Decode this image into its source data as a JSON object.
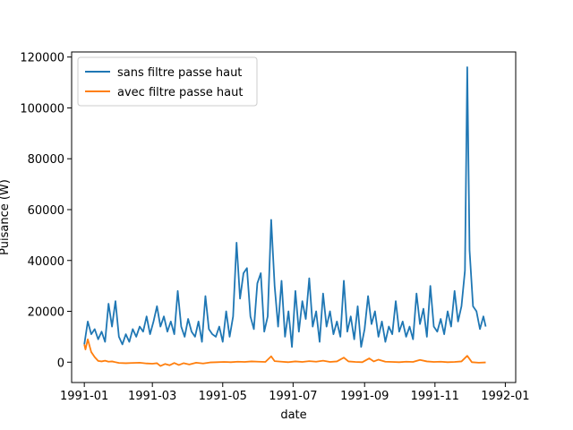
{
  "chart_data": {
    "type": "line",
    "title": "",
    "xlabel": "date",
    "ylabel": "Puisance (W)",
    "xlim": [
      "1990-12-21",
      "1992-01-10"
    ],
    "ylim": [
      -8000,
      122000
    ],
    "grid": false,
    "legend_position": "top-left",
    "x_ticks": [
      "1991-01-01",
      "1991-03-01",
      "1991-05-01",
      "1991-07-01",
      "1991-09-01",
      "1991-11-01",
      "1992-01-01"
    ],
    "x_tick_labels": [
      "1991-01",
      "1991-03",
      "1991-05",
      "1991-07",
      "1991-09",
      "1991-11",
      "1992-01"
    ],
    "y_ticks": [
      0,
      20000,
      40000,
      60000,
      80000,
      100000,
      120000
    ],
    "series": [
      {
        "name": "sans filtre passe haut",
        "color": "#1f77b4",
        "points": [
          [
            "1991-01-01",
            7000
          ],
          [
            "1991-01-04",
            16000
          ],
          [
            "1991-01-07",
            11000
          ],
          [
            "1991-01-10",
            13000
          ],
          [
            "1991-01-13",
            9000
          ],
          [
            "1991-01-16",
            12000
          ],
          [
            "1991-01-19",
            8000
          ],
          [
            "1991-01-22",
            23000
          ],
          [
            "1991-01-25",
            14000
          ],
          [
            "1991-01-28",
            24000
          ],
          [
            "1991-01-31",
            10000
          ],
          [
            "1991-02-03",
            7000
          ],
          [
            "1991-02-06",
            11000
          ],
          [
            "1991-02-09",
            8000
          ],
          [
            "1991-02-12",
            13000
          ],
          [
            "1991-02-15",
            10000
          ],
          [
            "1991-02-18",
            14000
          ],
          [
            "1991-02-21",
            12000
          ],
          [
            "1991-02-24",
            18000
          ],
          [
            "1991-02-27",
            11000
          ],
          [
            "1991-03-02",
            16000
          ],
          [
            "1991-03-05",
            22000
          ],
          [
            "1991-03-08",
            14000
          ],
          [
            "1991-03-11",
            18000
          ],
          [
            "1991-03-14",
            12000
          ],
          [
            "1991-03-17",
            16000
          ],
          [
            "1991-03-20",
            11000
          ],
          [
            "1991-03-23",
            28000
          ],
          [
            "1991-03-26",
            14000
          ],
          [
            "1991-03-29",
            10000
          ],
          [
            "1991-04-01",
            17000
          ],
          [
            "1991-04-04",
            12000
          ],
          [
            "1991-04-07",
            10000
          ],
          [
            "1991-04-10",
            16000
          ],
          [
            "1991-04-13",
            8000
          ],
          [
            "1991-04-16",
            26000
          ],
          [
            "1991-04-19",
            13000
          ],
          [
            "1991-04-22",
            11000
          ],
          [
            "1991-04-25",
            10000
          ],
          [
            "1991-04-28",
            14000
          ],
          [
            "1991-05-01",
            8000
          ],
          [
            "1991-05-04",
            20000
          ],
          [
            "1991-05-07",
            10000
          ],
          [
            "1991-05-10",
            18000
          ],
          [
            "1991-05-13",
            47000
          ],
          [
            "1991-05-16",
            25000
          ],
          [
            "1991-05-19",
            35000
          ],
          [
            "1991-05-22",
            37000
          ],
          [
            "1991-05-25",
            18000
          ],
          [
            "1991-05-28",
            13000
          ],
          [
            "1991-05-31",
            31000
          ],
          [
            "1991-06-03",
            35000
          ],
          [
            "1991-06-06",
            12000
          ],
          [
            "1991-06-09",
            18000
          ],
          [
            "1991-06-12",
            56000
          ],
          [
            "1991-06-15",
            30000
          ],
          [
            "1991-06-18",
            14000
          ],
          [
            "1991-06-21",
            32000
          ],
          [
            "1991-06-24",
            10000
          ],
          [
            "1991-06-27",
            20000
          ],
          [
            "1991-06-30",
            6000
          ],
          [
            "1991-07-03",
            28000
          ],
          [
            "1991-07-06",
            12000
          ],
          [
            "1991-07-09",
            24000
          ],
          [
            "1991-07-12",
            17000
          ],
          [
            "1991-07-15",
            33000
          ],
          [
            "1991-07-18",
            14000
          ],
          [
            "1991-07-21",
            20000
          ],
          [
            "1991-07-24",
            8000
          ],
          [
            "1991-07-27",
            27000
          ],
          [
            "1991-07-30",
            14000
          ],
          [
            "1991-08-02",
            20000
          ],
          [
            "1991-08-05",
            11000
          ],
          [
            "1991-08-08",
            16000
          ],
          [
            "1991-08-11",
            10000
          ],
          [
            "1991-08-14",
            32000
          ],
          [
            "1991-08-17",
            12000
          ],
          [
            "1991-08-20",
            18000
          ],
          [
            "1991-08-23",
            9000
          ],
          [
            "1991-08-26",
            22000
          ],
          [
            "1991-08-29",
            6000
          ],
          [
            "1991-09-01",
            13000
          ],
          [
            "1991-09-04",
            26000
          ],
          [
            "1991-09-07",
            15000
          ],
          [
            "1991-09-10",
            20000
          ],
          [
            "1991-09-13",
            10000
          ],
          [
            "1991-09-16",
            16000
          ],
          [
            "1991-09-19",
            8000
          ],
          [
            "1991-09-22",
            14000
          ],
          [
            "1991-09-25",
            11000
          ],
          [
            "1991-09-28",
            24000
          ],
          [
            "1991-10-01",
            12000
          ],
          [
            "1991-10-04",
            16000
          ],
          [
            "1991-10-07",
            10000
          ],
          [
            "1991-10-10",
            14000
          ],
          [
            "1991-10-13",
            9000
          ],
          [
            "1991-10-16",
            27000
          ],
          [
            "1991-10-19",
            15000
          ],
          [
            "1991-10-22",
            21000
          ],
          [
            "1991-10-25",
            10000
          ],
          [
            "1991-10-28",
            30000
          ],
          [
            "1991-10-31",
            14000
          ],
          [
            "1991-11-03",
            12000
          ],
          [
            "1991-11-06",
            17000
          ],
          [
            "1991-11-09",
            11000
          ],
          [
            "1991-11-12",
            20000
          ],
          [
            "1991-11-15",
            14000
          ],
          [
            "1991-11-18",
            28000
          ],
          [
            "1991-11-21",
            16000
          ],
          [
            "1991-11-24",
            22000
          ],
          [
            "1991-11-27",
            36000
          ],
          [
            "1991-11-29",
            116000
          ],
          [
            "1991-12-01",
            44000
          ],
          [
            "1991-12-04",
            22000
          ],
          [
            "1991-12-07",
            20000
          ],
          [
            "1991-12-10",
            13000
          ],
          [
            "1991-12-13",
            18000
          ],
          [
            "1991-12-15",
            14000
          ]
        ]
      },
      {
        "name": "avec filtre passe haut",
        "color": "#ff7f0e",
        "points": [
          [
            "1991-01-01",
            7000
          ],
          [
            "1991-01-02",
            5000
          ],
          [
            "1991-01-04",
            9000
          ],
          [
            "1991-01-07",
            4000
          ],
          [
            "1991-01-10",
            2000
          ],
          [
            "1991-01-13",
            500
          ],
          [
            "1991-01-16",
            300
          ],
          [
            "1991-01-19",
            600
          ],
          [
            "1991-01-22",
            200
          ],
          [
            "1991-01-25",
            300
          ],
          [
            "1991-01-31",
            -300
          ],
          [
            "1991-02-06",
            -400
          ],
          [
            "1991-02-12",
            -300
          ],
          [
            "1991-02-18",
            -200
          ],
          [
            "1991-02-24",
            -500
          ],
          [
            "1991-03-01",
            -600
          ],
          [
            "1991-03-05",
            -400
          ],
          [
            "1991-03-08",
            -1500
          ],
          [
            "1991-03-12",
            -700
          ],
          [
            "1991-03-16",
            -1200
          ],
          [
            "1991-03-20",
            -300
          ],
          [
            "1991-03-24",
            -1100
          ],
          [
            "1991-03-28",
            -400
          ],
          [
            "1991-04-02",
            -900
          ],
          [
            "1991-04-08",
            -200
          ],
          [
            "1991-04-14",
            -500
          ],
          [
            "1991-04-20",
            -100
          ],
          [
            "1991-04-26",
            0
          ],
          [
            "1991-05-02",
            100
          ],
          [
            "1991-05-08",
            0
          ],
          [
            "1991-05-14",
            200
          ],
          [
            "1991-05-20",
            100
          ],
          [
            "1991-05-26",
            300
          ],
          [
            "1991-06-01",
            200
          ],
          [
            "1991-06-07",
            100
          ],
          [
            "1991-06-12",
            2300
          ],
          [
            "1991-06-15",
            400
          ],
          [
            "1991-06-21",
            200
          ],
          [
            "1991-06-27",
            0
          ],
          [
            "1991-07-03",
            300
          ],
          [
            "1991-07-09",
            100
          ],
          [
            "1991-07-15",
            400
          ],
          [
            "1991-07-21",
            200
          ],
          [
            "1991-07-27",
            600
          ],
          [
            "1991-08-02",
            100
          ],
          [
            "1991-08-08",
            300
          ],
          [
            "1991-08-14",
            1800
          ],
          [
            "1991-08-18",
            300
          ],
          [
            "1991-08-24",
            100
          ],
          [
            "1991-08-30",
            0
          ],
          [
            "1991-09-05",
            1500
          ],
          [
            "1991-09-09",
            300
          ],
          [
            "1991-09-13",
            1000
          ],
          [
            "1991-09-19",
            200
          ],
          [
            "1991-09-25",
            100
          ],
          [
            "1991-10-01",
            0
          ],
          [
            "1991-10-07",
            200
          ],
          [
            "1991-10-13",
            100
          ],
          [
            "1991-10-19",
            900
          ],
          [
            "1991-10-25",
            300
          ],
          [
            "1991-10-31",
            100
          ],
          [
            "1991-11-06",
            200
          ],
          [
            "1991-11-12",
            0
          ],
          [
            "1991-11-18",
            100
          ],
          [
            "1991-11-24",
            300
          ],
          [
            "1991-11-29",
            2500
          ],
          [
            "1991-12-03",
            0
          ],
          [
            "1991-12-09",
            -200
          ],
          [
            "1991-12-15",
            -100
          ]
        ]
      }
    ]
  }
}
